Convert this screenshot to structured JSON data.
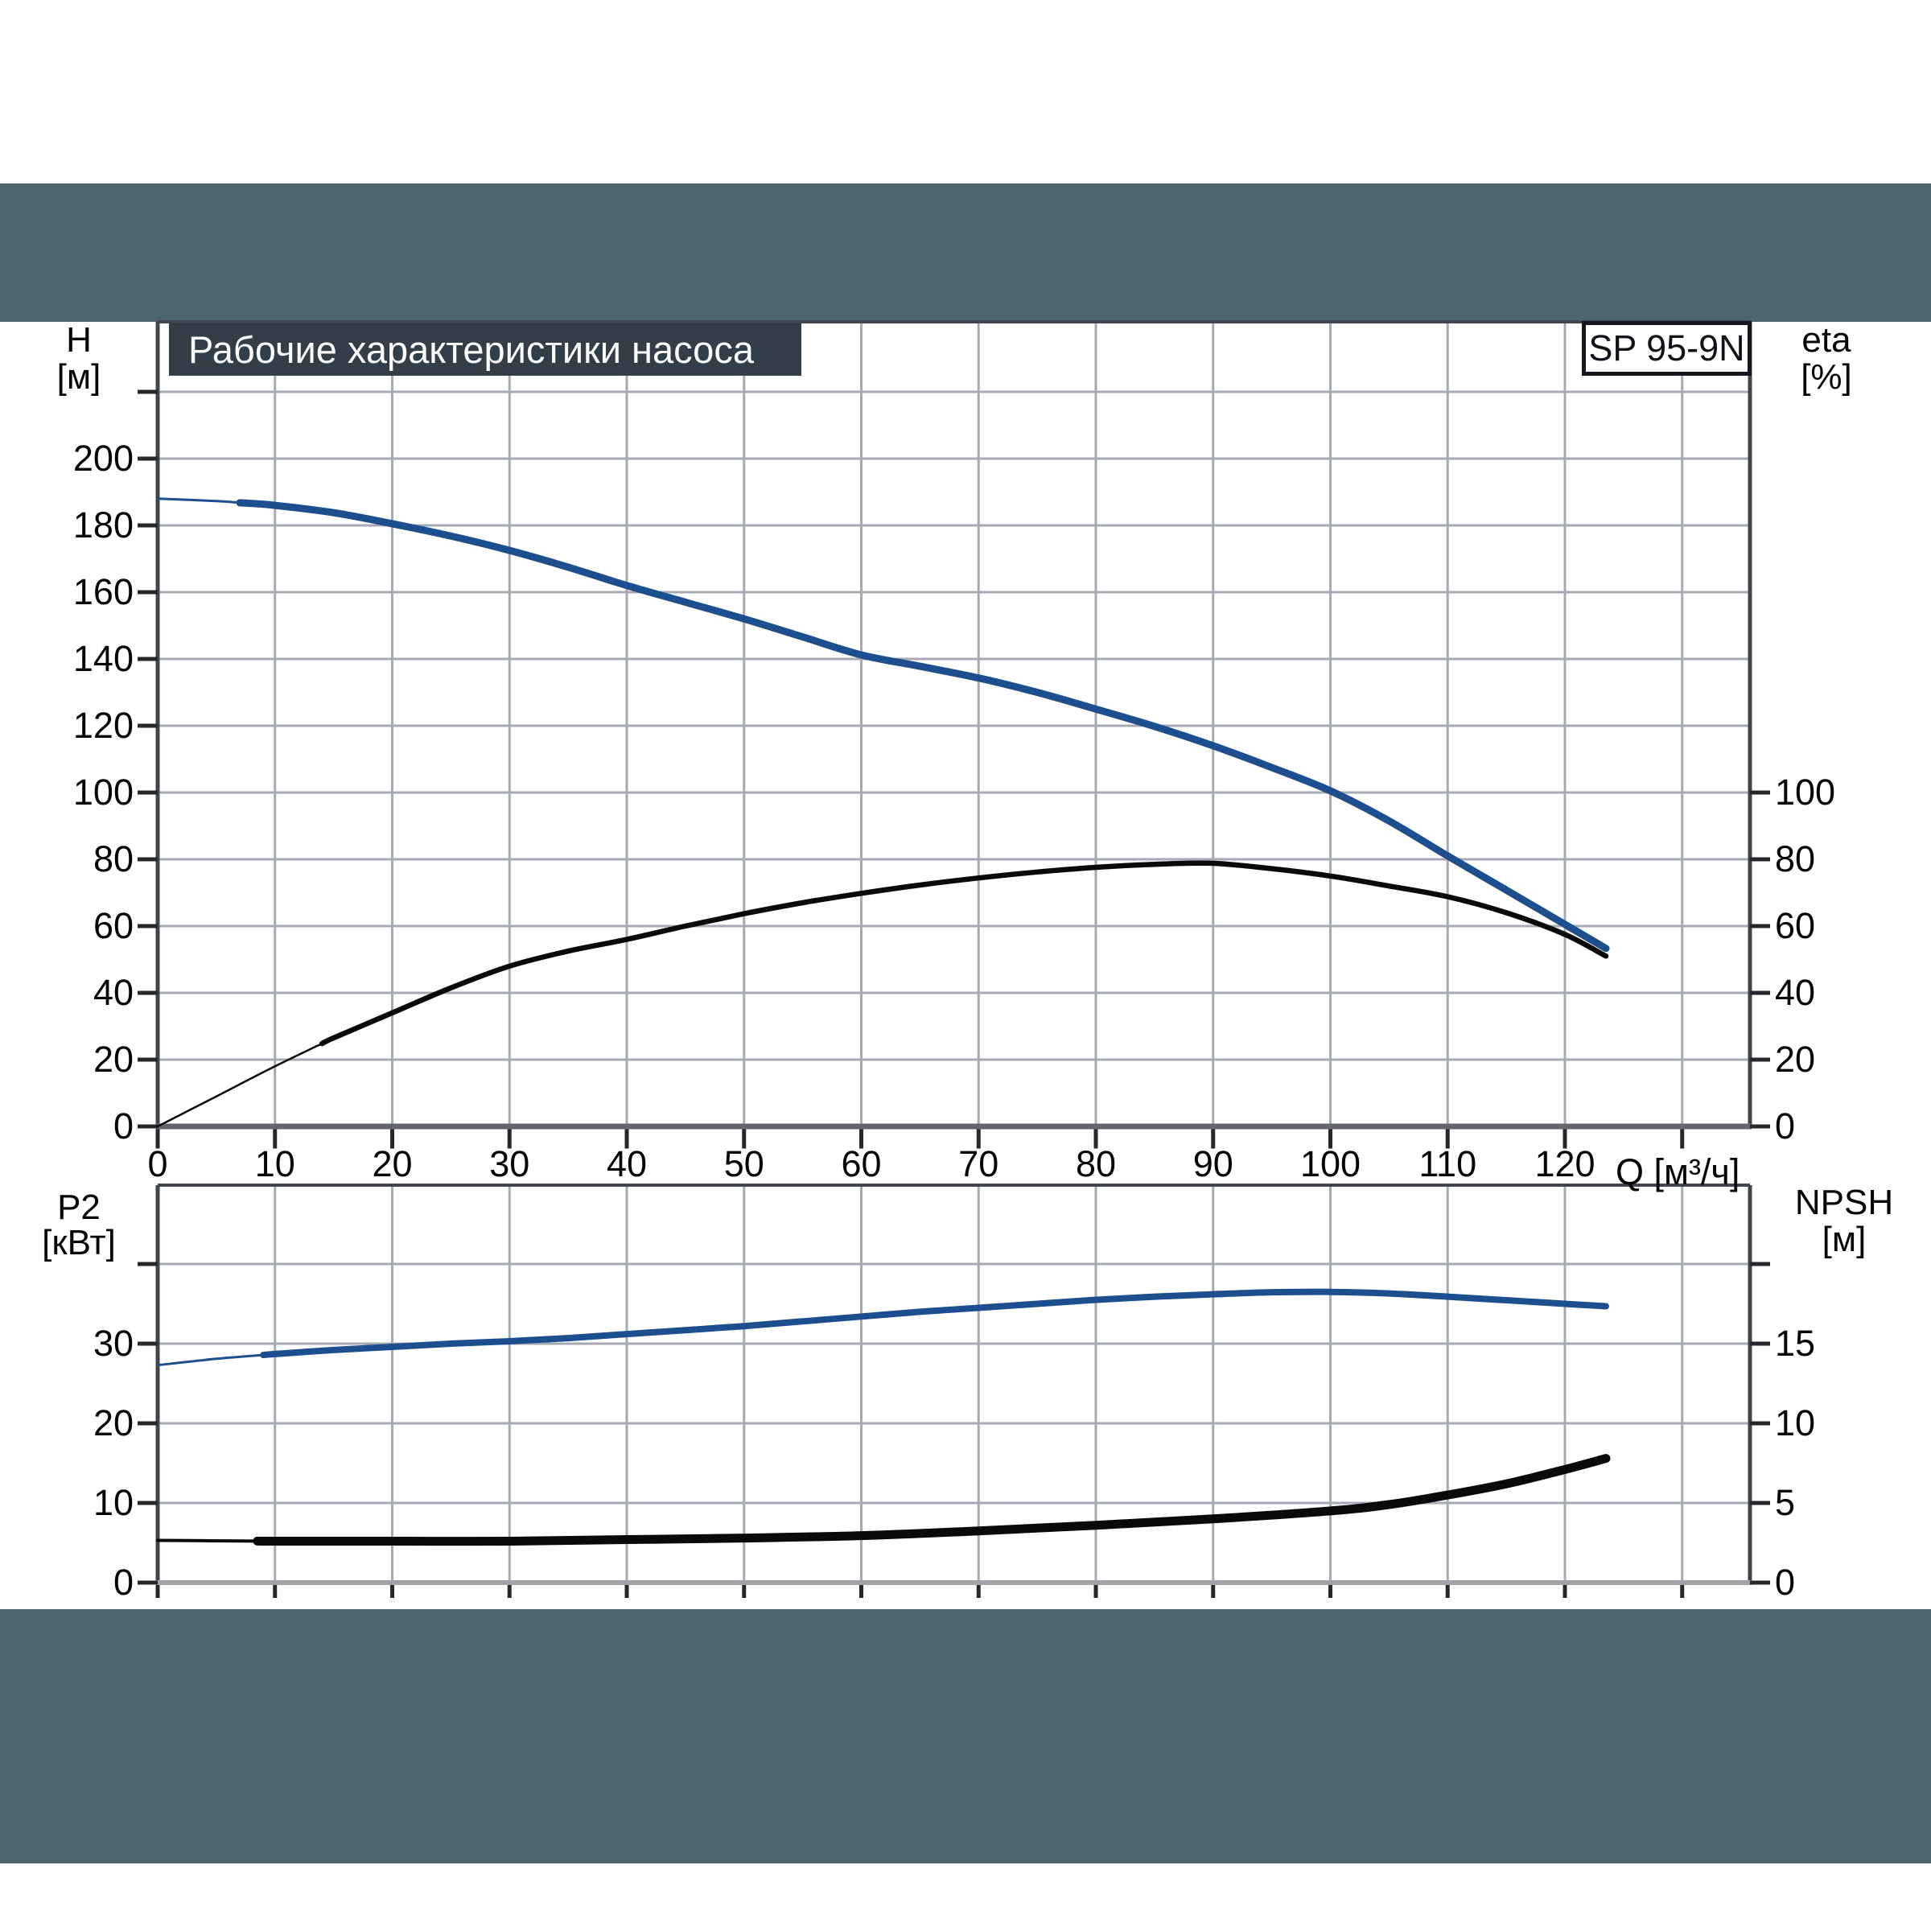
{
  "header": {
    "title": "Рабочие характеристики насоса",
    "model": "SP 95-9N"
  },
  "colors": {
    "band": "#4e656e",
    "title_bar": "#333e49",
    "frame": "#41454d",
    "grid": "#a5aab3",
    "tick": "#26282c",
    "curve_blue": "#1d4f8e",
    "curve_black": "#0a0a0a",
    "axis_bottom_top_chart": "#63666b",
    "axis_bottom_bottom_chart": "#a1a3a7"
  },
  "chart_data": [
    {
      "type": "line",
      "title": "Рабочие характеристики насоса",
      "model": "SP 95-9N",
      "x_axis": {
        "label": "Q [м³/ч]",
        "min": 0,
        "max": 135.8,
        "grid_step": 10,
        "tick_labels": [
          "0",
          "10",
          "20",
          "30",
          "40",
          "50",
          "60",
          "70",
          "80",
          "90",
          "100",
          "110",
          "120"
        ],
        "tick_values": [
          0,
          10,
          20,
          30,
          40,
          50,
          60,
          70,
          80,
          90,
          100,
          110,
          120
        ]
      },
      "y_left": {
        "label": "H",
        "unit": "[м]",
        "min": 0,
        "max": 241,
        "grid_step": 20,
        "tick_labels": [
          "0",
          "20",
          "40",
          "60",
          "80",
          "100",
          "120",
          "140",
          "160",
          "180",
          "200"
        ],
        "tick_values": [
          0,
          20,
          40,
          60,
          80,
          100,
          120,
          140,
          160,
          180,
          200
        ],
        "extra_ticks": [
          220
        ]
      },
      "y_right": {
        "label": "eta",
        "unit": "[%]",
        "min": 0,
        "max": 241,
        "tick_labels": [
          "0",
          "20",
          "40",
          "60",
          "80",
          "100"
        ],
        "tick_values": [
          0,
          20,
          40,
          60,
          80,
          100
        ],
        "extra_ticks": []
      },
      "series": [
        {
          "name": "H",
          "axis": "left",
          "color": "#1d4f8e",
          "w_thin": 3,
          "w_thick": 9,
          "thick_from": 7,
          "points": [
            [
              0,
              188
            ],
            [
              5,
              187.3
            ],
            [
              10,
              186
            ],
            [
              15,
              183.8
            ],
            [
              20,
              180.5
            ],
            [
              25,
              176.8
            ],
            [
              30,
              172.5
            ],
            [
              35,
              167.5
            ],
            [
              40,
              162
            ],
            [
              45,
              157
            ],
            [
              50,
              152
            ],
            [
              55,
              146.6
            ],
            [
              60,
              141.2
            ],
            [
              65,
              137.8
            ],
            [
              70,
              134.3
            ],
            [
              75,
              130
            ],
            [
              80,
              125
            ],
            [
              85,
              119.8
            ],
            [
              90,
              114
            ],
            [
              95,
              107.5
            ],
            [
              100,
              100.5
            ],
            [
              105,
              91.5
            ],
            [
              110,
              81
            ],
            [
              115,
              70.8
            ],
            [
              120,
              60.5
            ],
            [
              123.5,
              53.3
            ]
          ]
        },
        {
          "name": "eta",
          "axis": "right",
          "color": "#0a0a0a",
          "w_thin": 2.5,
          "w_thick": 6.5,
          "thick_from": 14,
          "points": [
            [
              0,
              0
            ],
            [
              5,
              9
            ],
            [
              10,
              18
            ],
            [
              15,
              26.5
            ],
            [
              20,
              34
            ],
            [
              25,
              41.5
            ],
            [
              30,
              48
            ],
            [
              35,
              52.5
            ],
            [
              40,
              56
            ],
            [
              45,
              60
            ],
            [
              50,
              63.7
            ],
            [
              55,
              67
            ],
            [
              60,
              69.8
            ],
            [
              65,
              72.3
            ],
            [
              70,
              74.4
            ],
            [
              75,
              76.2
            ],
            [
              80,
              77.6
            ],
            [
              85,
              78.5
            ],
            [
              90,
              78.8
            ],
            [
              95,
              77.2
            ],
            [
              100,
              75
            ],
            [
              105,
              72
            ],
            [
              110,
              68.8
            ],
            [
              115,
              64
            ],
            [
              120,
              57.5
            ],
            [
              123.5,
              51
            ]
          ]
        }
      ]
    },
    {
      "type": "line",
      "x_axis": {
        "label": "",
        "min": 0,
        "max": 135.8,
        "grid_step": 10,
        "tick_labels": [],
        "tick_values": []
      },
      "y_left": {
        "label": "P2",
        "unit": "[кВт]",
        "min": 0,
        "max": 50,
        "grid_step": 10,
        "tick_labels": [
          "0",
          "10",
          "20",
          "30"
        ],
        "tick_values": [
          0,
          10,
          20,
          30
        ],
        "extra_ticks": [
          40
        ]
      },
      "y_right": {
        "label": "NPSH",
        "unit": "[м]",
        "min": 0,
        "max": 25,
        "tick_labels": [
          "0",
          "5",
          "10",
          "15"
        ],
        "tick_values": [
          0,
          5,
          10,
          15
        ],
        "extra_ticks": [
          20
        ]
      },
      "series": [
        {
          "name": "P2",
          "axis": "left",
          "color": "#1d4f8e",
          "w_thin": 3,
          "w_thick": 8,
          "thick_from": 9,
          "points": [
            [
              0,
              27.3
            ],
            [
              5,
              28.1
            ],
            [
              10,
              28.7
            ],
            [
              15,
              29.2
            ],
            [
              20,
              29.6
            ],
            [
              25,
              30
            ],
            [
              30,
              30.3
            ],
            [
              35,
              30.7
            ],
            [
              40,
              31.2
            ],
            [
              45,
              31.7
            ],
            [
              50,
              32.2
            ],
            [
              55,
              32.8
            ],
            [
              60,
              33.4
            ],
            [
              65,
              34
            ],
            [
              70,
              34.5
            ],
            [
              75,
              35
            ],
            [
              80,
              35.5
            ],
            [
              85,
              35.9
            ],
            [
              90,
              36.2
            ],
            [
              95,
              36.45
            ],
            [
              100,
              36.5
            ],
            [
              105,
              36.3
            ],
            [
              110,
              35.9
            ],
            [
              115,
              35.45
            ],
            [
              120,
              35
            ],
            [
              123.5,
              34.7
            ]
          ]
        },
        {
          "name": "NPSH",
          "axis": "right",
          "color": "#0a0a0a",
          "w_thin": 4,
          "w_thick": 11,
          "thick_from": 8.5,
          "points": [
            [
              0,
              2.65
            ],
            [
              10,
              2.6
            ],
            [
              20,
              2.6
            ],
            [
              30,
              2.6
            ],
            [
              40,
              2.7
            ],
            [
              50,
              2.8
            ],
            [
              60,
              2.95
            ],
            [
              70,
              3.25
            ],
            [
              80,
              3.6
            ],
            [
              90,
              4.0
            ],
            [
              100,
              4.5
            ],
            [
              105,
              4.9
            ],
            [
              110,
              5.5
            ],
            [
              115,
              6.2
            ],
            [
              120,
              7.1
            ],
            [
              123.5,
              7.8
            ]
          ]
        }
      ]
    }
  ]
}
